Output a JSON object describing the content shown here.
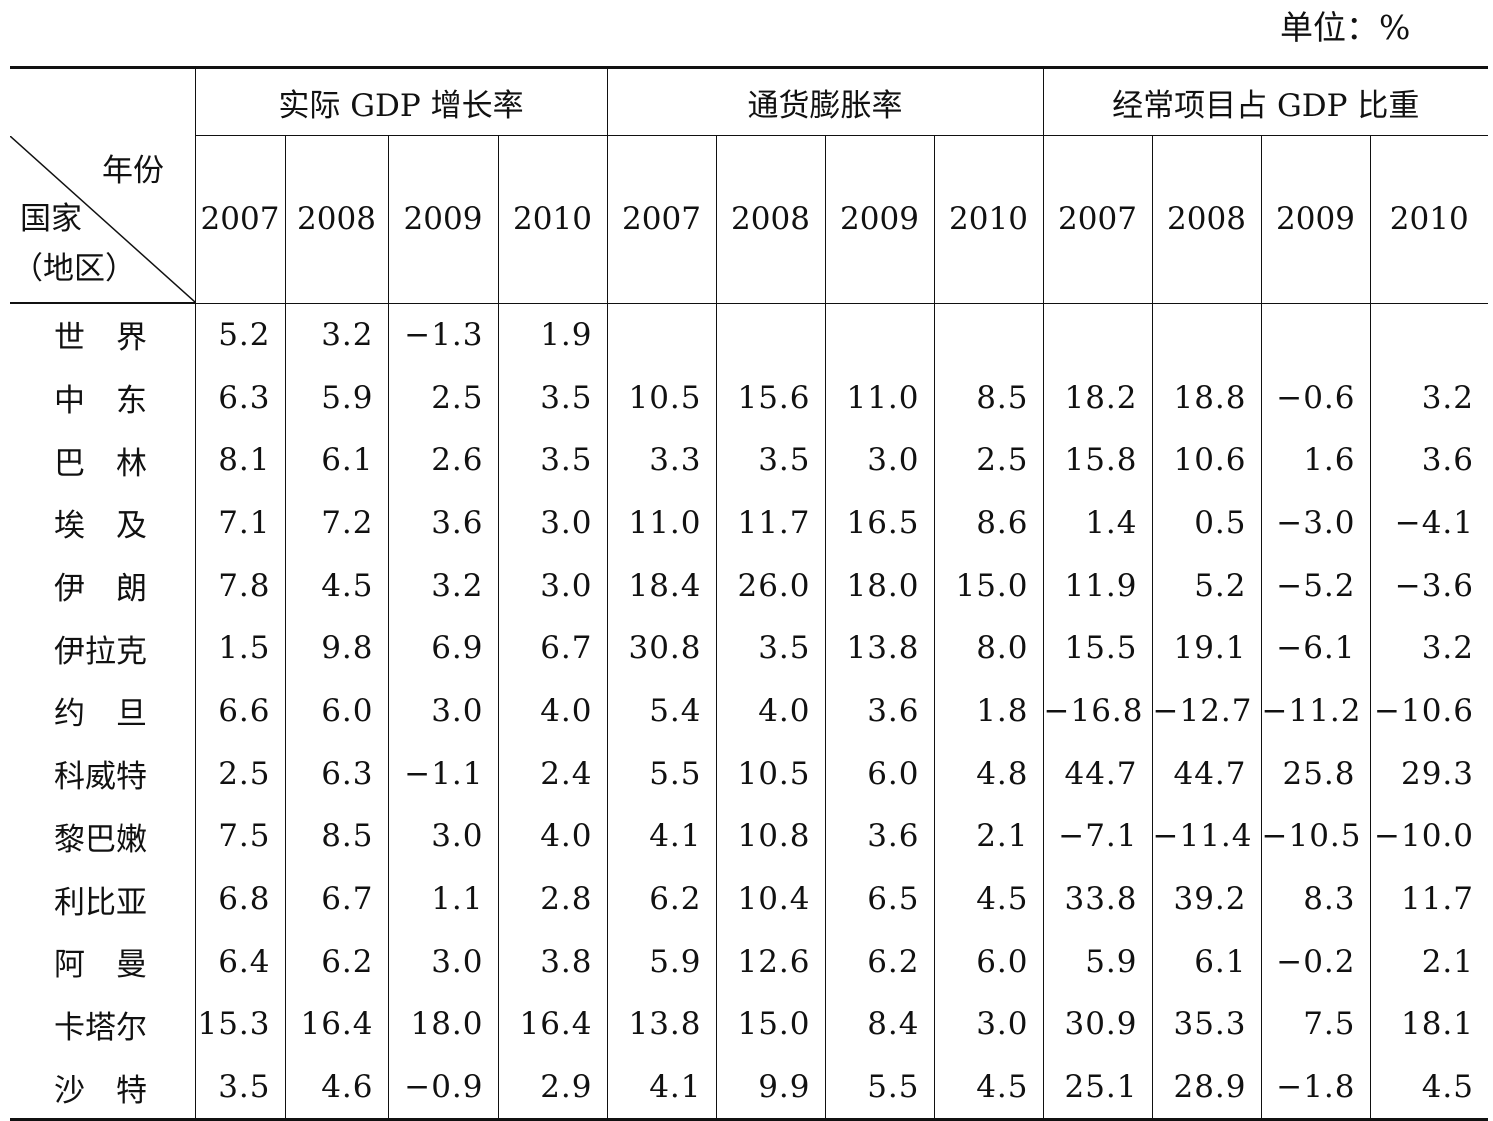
{
  "unit": "单位：%",
  "groups": [
    "实际 GDP 增长率",
    "通货膨胀率",
    "经常项目占 GDP 比重"
  ],
  "corner": {
    "year": "年份",
    "country": "国家",
    "region": "（地区）"
  },
  "years": [
    "2007",
    "2008",
    "2009",
    "2010",
    "2007",
    "2008",
    "2009",
    "2010",
    "2007",
    "2008",
    "2009",
    "2010"
  ],
  "rows": [
    {
      "country": "世　界",
      "values": [
        "5.2",
        "3.2",
        "−1.3",
        "1.9",
        "",
        "",
        "",
        "",
        "",
        "",
        "",
        ""
      ]
    },
    {
      "country": "中　东",
      "values": [
        "6.3",
        "5.9",
        "2.5",
        "3.5",
        "10.5",
        "15.6",
        "11.0",
        "8.5",
        "18.2",
        "18.8",
        "−0.6",
        "3.2"
      ]
    },
    {
      "country": "巴　林",
      "values": [
        "8.1",
        "6.1",
        "2.6",
        "3.5",
        "3.3",
        "3.5",
        "3.0",
        "2.5",
        "15.8",
        "10.6",
        "1.6",
        "3.6"
      ]
    },
    {
      "country": "埃　及",
      "values": [
        "7.1",
        "7.2",
        "3.6",
        "3.0",
        "11.0",
        "11.7",
        "16.5",
        "8.6",
        "1.4",
        "0.5",
        "−3.0",
        "−4.1"
      ]
    },
    {
      "country": "伊　朗",
      "values": [
        "7.8",
        "4.5",
        "3.2",
        "3.0",
        "18.4",
        "26.0",
        "18.0",
        "15.0",
        "11.9",
        "5.2",
        "−5.2",
        "−3.6"
      ]
    },
    {
      "country": "伊拉克",
      "values": [
        "1.5",
        "9.8",
        "6.9",
        "6.7",
        "30.8",
        "3.5",
        "13.8",
        "8.0",
        "15.5",
        "19.1",
        "−6.1",
        "3.2"
      ]
    },
    {
      "country": "约　旦",
      "values": [
        "6.6",
        "6.0",
        "3.0",
        "4.0",
        "5.4",
        "4.0",
        "3.6",
        "1.8",
        "−16.8",
        "−12.7",
        "−11.2",
        "−10.6"
      ]
    },
    {
      "country": "科威特",
      "values": [
        "2.5",
        "6.3",
        "−1.1",
        "2.4",
        "5.5",
        "10.5",
        "6.0",
        "4.8",
        "44.7",
        "44.7",
        "25.8",
        "29.3"
      ]
    },
    {
      "country": "黎巴嫩",
      "values": [
        "7.5",
        "8.5",
        "3.0",
        "4.0",
        "4.1",
        "10.8",
        "3.6",
        "2.1",
        "−7.1",
        "−11.4",
        "−10.5",
        "−10.0"
      ]
    },
    {
      "country": "利比亚",
      "values": [
        "6.8",
        "6.7",
        "1.1",
        "2.8",
        "6.2",
        "10.4",
        "6.5",
        "4.5",
        "33.8",
        "39.2",
        "8.3",
        "11.7"
      ]
    },
    {
      "country": "阿　曼",
      "values": [
        "6.4",
        "6.2",
        "3.0",
        "3.8",
        "5.9",
        "12.6",
        "6.2",
        "6.0",
        "5.9",
        "6.1",
        "−0.2",
        "2.1"
      ]
    },
    {
      "country": "卡塔尔",
      "values": [
        "15.3",
        "16.4",
        "18.0",
        "16.4",
        "13.8",
        "15.0",
        "8.4",
        "3.0",
        "30.9",
        "35.3",
        "7.5",
        "18.1"
      ]
    },
    {
      "country": "沙　特",
      "values": [
        "3.5",
        "4.6",
        "−0.9",
        "2.9",
        "4.1",
        "9.9",
        "5.5",
        "4.5",
        "25.1",
        "28.9",
        "−1.8",
        "4.5"
      ]
    }
  ]
}
